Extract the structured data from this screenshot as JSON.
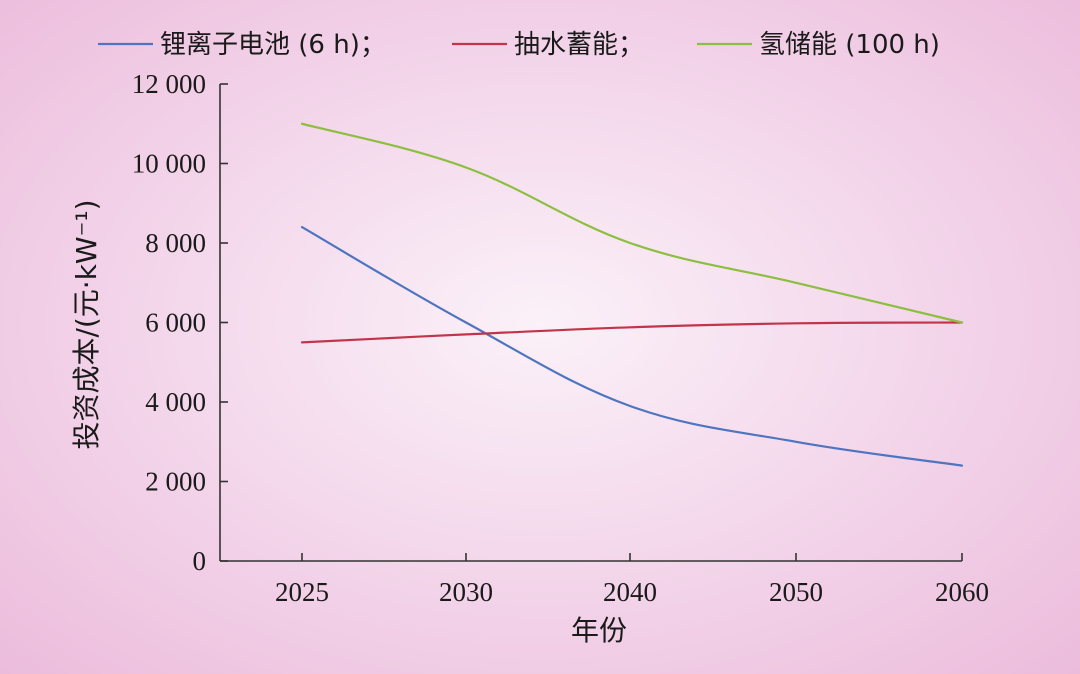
{
  "chart_data": {
    "type": "line",
    "x": [
      "2025",
      "2030",
      "2040",
      "2050",
      "2060"
    ],
    "xlabel": "年份",
    "ylabel": "投资成本/(元·kW⁻¹)",
    "ylim": [
      0,
      12000
    ],
    "yticks": [
      0,
      2000,
      4000,
      6000,
      8000,
      10000,
      12000
    ],
    "ytick_labels": [
      "0",
      "2 000",
      "4 000",
      "6 000",
      "8 000",
      "10 000",
      "12 000"
    ],
    "grid": false,
    "legend_position": "top",
    "series": [
      {
        "name": "锂离子电池 (6 h)；",
        "color": "#4f74c0",
        "values": [
          8400,
          6000,
          3900,
          3000,
          2400
        ]
      },
      {
        "name": "抽水蓄能；",
        "color": "#c0354a",
        "values": [
          5500,
          5700,
          5880,
          5980,
          6000
        ]
      },
      {
        "name": "氢储能 (100 h)",
        "color": "#8cbf3f",
        "values": [
          11000,
          9900,
          8000,
          7000,
          6000
        ]
      }
    ]
  }
}
